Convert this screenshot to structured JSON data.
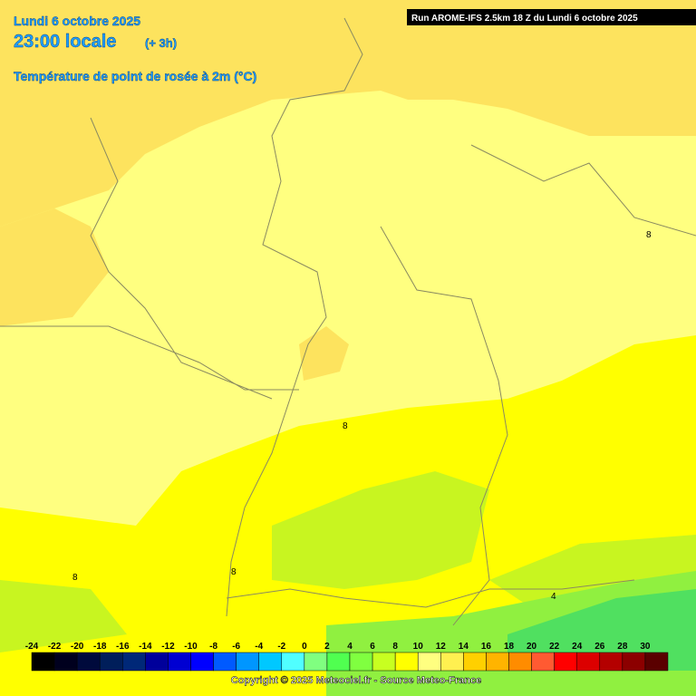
{
  "header": {
    "date": "Lundi 6 octobre 2025",
    "time": "23:00 locale",
    "offset": "(+ 3h)",
    "parameter": "Température de point de rosée à 2m (°C)",
    "run": "Run AROME-IFS 2.5km 18 Z du Lundi 6 octobre 2025"
  },
  "contour_labels": [
    "8",
    "8",
    "8",
    "8",
    "4"
  ],
  "legend": {
    "labels": [
      -24,
      -22,
      -20,
      -18,
      -16,
      -14,
      -12,
      -10,
      -8,
      -6,
      -4,
      -2,
      0,
      2,
      4,
      6,
      8,
      10,
      12,
      14,
      16,
      18,
      20,
      22,
      24,
      26,
      28,
      30
    ],
    "colors": [
      "#000000",
      "#00001e",
      "#000a3c",
      "#001e5a",
      "#002878",
      "#00009b",
      "#0000d2",
      "#0000ff",
      "#005aff",
      "#0096ff",
      "#00c8ff",
      "#50ffff",
      "#80ff80",
      "#50ff50",
      "#80ff40",
      "#c8ff20",
      "#ffff00",
      "#ffff80",
      "#fff050",
      "#ffd000",
      "#ffb400",
      "#ff8c00",
      "#ff5a32",
      "#ff0000",
      "#dc0000",
      "#b40000",
      "#8c0000",
      "#5a0000"
    ]
  },
  "copyright": "Copyright © 2025 Meteociel.fr - Source Meteo-France"
}
